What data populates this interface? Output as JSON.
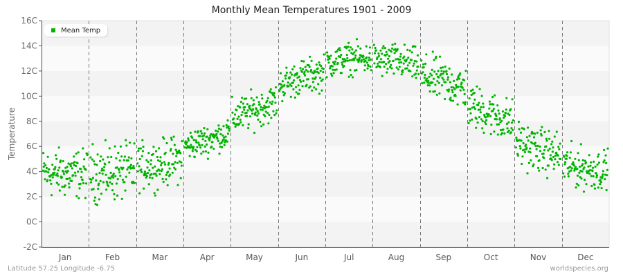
{
  "title": "Monthly Mean Temperatures 1901 - 2009",
  "footer": {
    "location": "Latitude 57.25 Longitude -6.75",
    "source": "worldspecies.org"
  },
  "legend": {
    "label": "Mean Temp",
    "color": "#00b400"
  },
  "colors": {
    "point": "#00b400",
    "band_dark": "#f3f3f3",
    "band_light": "#fafafa",
    "axis": "#555555",
    "divider": "#777777"
  },
  "chart_data": {
    "type": "scatter",
    "title": "Monthly Mean Temperatures 1901 - 2009",
    "xlabel": "",
    "ylabel": "Temperature",
    "ylim": [
      -2,
      16
    ],
    "yticks": [
      "-2C",
      "0C",
      "2C",
      "4C",
      "6C",
      "8C",
      "10C",
      "12C",
      "14C",
      "16C"
    ],
    "yticks_values": [
      -2,
      0,
      2,
      4,
      6,
      8,
      10,
      12,
      14,
      16
    ],
    "categories": [
      "Jan",
      "Feb",
      "Mar",
      "Apr",
      "May",
      "Jun",
      "Jul",
      "Aug",
      "Sep",
      "Oct",
      "Nov",
      "Dec"
    ],
    "grid": "horizontal alternating bands every 2C, dashed vertical month dividers",
    "legend_position": "top-left inside",
    "years": [
      1901,
      2009
    ],
    "series": [
      {
        "name": "Mean Temp",
        "points_per_month": 109,
        "month_stats": [
          {
            "month": "Jan",
            "mean": 3.8,
            "min": 0.9,
            "max": 6.5
          },
          {
            "month": "Feb",
            "mean": 3.9,
            "min": -0.1,
            "max": 6.5
          },
          {
            "month": "Mar",
            "mean": 4.6,
            "min": 2.1,
            "max": 7.5
          },
          {
            "month": "Apr",
            "mean": 6.5,
            "min": 4.8,
            "max": 8.3
          },
          {
            "month": "May",
            "mean": 8.9,
            "min": 6.5,
            "max": 10.7
          },
          {
            "month": "Jun",
            "mean": 11.5,
            "min": 9.6,
            "max": 13.6
          },
          {
            "month": "Jul",
            "mean": 13.0,
            "min": 11.5,
            "max": 15.1
          },
          {
            "month": "Aug",
            "mean": 12.8,
            "min": 11.2,
            "max": 15.2
          },
          {
            "month": "Sep",
            "mean": 11.2,
            "min": 8.5,
            "max": 13.6
          },
          {
            "month": "Oct",
            "mean": 8.6,
            "min": 5.8,
            "max": 11.0
          },
          {
            "month": "Nov",
            "mean": 5.7,
            "min": 3.1,
            "max": 8.3
          },
          {
            "month": "Dec",
            "mean": 4.2,
            "min": 1.8,
            "max": 6.5
          }
        ]
      }
    ]
  }
}
